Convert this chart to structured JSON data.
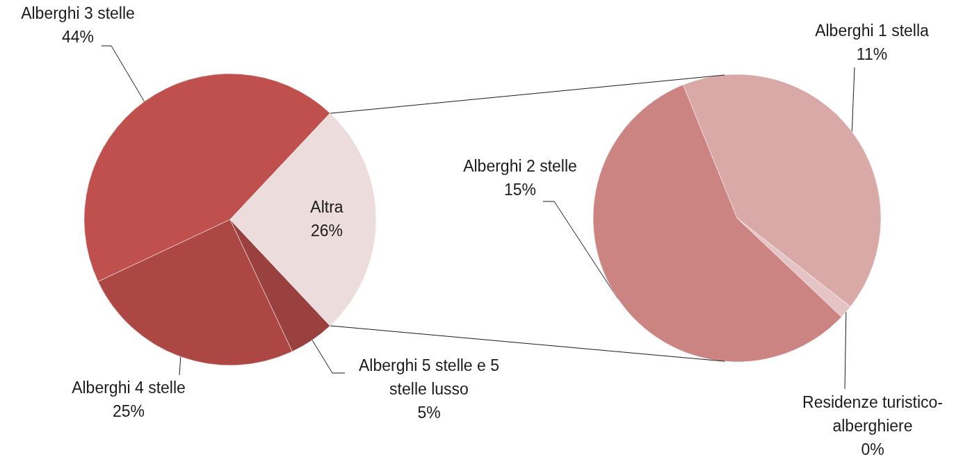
{
  "chart_data": [
    {
      "type": "pie",
      "categories": [
        "Alberghi 3 stelle",
        "Alberghi 4 stelle",
        "Alberghi 5 stelle e 5 stelle lusso",
        "Altra"
      ],
      "values": [
        44,
        25,
        5,
        26
      ],
      "colors": [
        "#c0504d",
        "#ad4744",
        "#9a403e",
        "#ecdcdc"
      ],
      "value_labels": [
        "44%",
        "25%",
        "5%",
        "26%"
      ]
    },
    {
      "type": "pie",
      "categories": [
        "Alberghi 1 stella",
        "Residenze turistico-alberghiere",
        "Alberghi 2 stelle"
      ],
      "values": [
        11,
        0.4,
        15
      ],
      "colors": [
        "#d9a9a8",
        "#e4c4c4",
        "#cc8482"
      ],
      "value_labels": [
        "11%",
        "0%",
        "15%"
      ]
    }
  ]
}
